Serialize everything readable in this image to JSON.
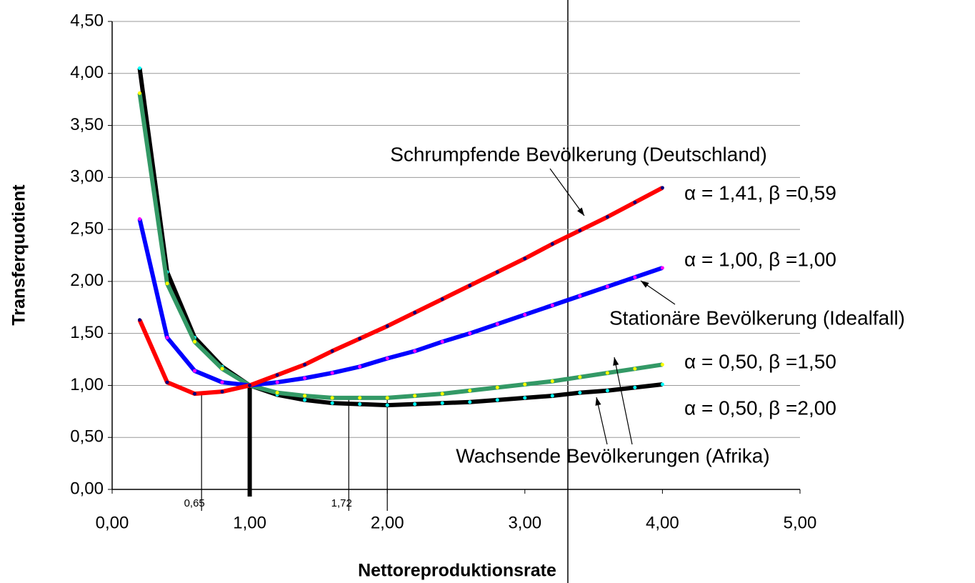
{
  "chart_data": {
    "type": "line",
    "x_label": "Nettoreproduktionsrate",
    "y_label": "Transferquotient",
    "x": [
      0.2,
      0.4,
      0.6,
      0.8,
      1.0,
      1.2,
      1.4,
      1.6,
      1.8,
      2.0,
      2.2,
      2.4,
      2.6,
      2.8,
      3.0,
      3.2,
      3.4,
      3.6,
      3.8,
      4.0
    ],
    "series": [
      {
        "name": "α = 1,41, β =0,59",
        "color": "#ff0000",
        "marker_color": "#000080",
        "values": [
          1.63,
          1.03,
          0.92,
          0.94,
          1.0,
          1.1,
          1.2,
          1.33,
          1.45,
          1.57,
          1.7,
          1.83,
          1.96,
          2.09,
          2.22,
          2.36,
          2.49,
          2.62,
          2.76,
          2.9
        ]
      },
      {
        "name": "α = 1,00, β =1,00",
        "color": "#0000ff",
        "marker_color": "#ff00ff",
        "values": [
          2.6,
          1.46,
          1.14,
          1.03,
          1.0,
          1.03,
          1.07,
          1.12,
          1.18,
          1.26,
          1.33,
          1.42,
          1.5,
          1.59,
          1.68,
          1.77,
          1.86,
          1.95,
          2.04,
          2.13
        ]
      },
      {
        "name": "α = 0,50, β =1,50",
        "color": "#339966",
        "marker_color": "#ffff00",
        "values": [
          3.81,
          1.98,
          1.42,
          1.16,
          1.0,
          0.93,
          0.9,
          0.88,
          0.88,
          0.88,
          0.9,
          0.92,
          0.95,
          0.98,
          1.01,
          1.04,
          1.08,
          1.12,
          1.16,
          1.2
        ]
      },
      {
        "name": "α = 0,50, β =2,00",
        "color": "#000000",
        "marker_color": "#00ffff",
        "values": [
          4.05,
          2.09,
          1.46,
          1.18,
          1.0,
          0.91,
          0.86,
          0.83,
          0.82,
          0.81,
          0.82,
          0.83,
          0.84,
          0.86,
          0.88,
          0.9,
          0.93,
          0.95,
          0.98,
          1.01
        ]
      }
    ],
    "xlim": [
      0,
      5
    ],
    "ylim": [
      0,
      4.5
    ],
    "xticks": [
      {
        "value": 0,
        "label": "0,00"
      },
      {
        "value": 1,
        "label": "1,00"
      },
      {
        "value": 2,
        "label": "2,00"
      },
      {
        "value": 3,
        "label": "3,00"
      },
      {
        "value": 4,
        "label": "4,00"
      },
      {
        "value": 5,
        "label": "5,00"
      }
    ],
    "yticks": [
      {
        "value": 0,
        "label": "0,00"
      },
      {
        "value": 0.5,
        "label": "0,50"
      },
      {
        "value": 1,
        "label": "1,00"
      },
      {
        "value": 1.5,
        "label": "1,50"
      },
      {
        "value": 2,
        "label": "2,00"
      },
      {
        "value": 2.5,
        "label": "2,50"
      },
      {
        "value": 3,
        "label": "3,00"
      },
      {
        "value": 3.5,
        "label": "3,50"
      },
      {
        "value": 4,
        "label": "4,00"
      },
      {
        "value": 4.5,
        "label": "4,50"
      }
    ],
    "grid": true,
    "reference_lines": [
      {
        "x": 0.65,
        "y": 0.92,
        "label": "0,65"
      },
      {
        "x": 1.0,
        "y": 1.0
      },
      {
        "x": 1.72,
        "y": 0.88,
        "label": "1,72"
      },
      {
        "x": 2.0,
        "y": 0.88
      }
    ],
    "annotations": [
      "Schrumpfende Bevölkerung (Deutschland)",
      "Stationäre Bevölkerung (Idealfall)",
      "Wachsende Bevölkerungen (Afrika)"
    ]
  }
}
